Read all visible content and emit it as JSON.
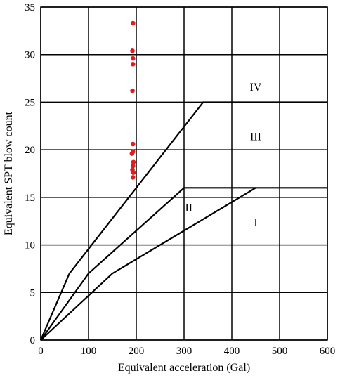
{
  "chart_data": {
    "type": "scatter",
    "xlabel": "Equivalent acceleration (Gal)",
    "ylabel": "Equivalent SPT blow count",
    "xlim": [
      0,
      600
    ],
    "ylim": [
      0,
      35
    ],
    "xticks": [
      0,
      100,
      200,
      300,
      400,
      500,
      600
    ],
    "yticks": [
      0,
      5,
      10,
      15,
      20,
      25,
      30,
      35
    ],
    "grid": true,
    "series": [
      {
        "kind": "points",
        "color": "#e31b1b",
        "points": [
          {
            "x": 193,
            "y": 33.3
          },
          {
            "x": 192,
            "y": 30.4
          },
          {
            "x": 193,
            "y": 29.6
          },
          {
            "x": 193,
            "y": 29.0
          },
          {
            "x": 192,
            "y": 26.2
          },
          {
            "x": 193,
            "y": 20.6
          },
          {
            "x": 193,
            "y": 19.8
          },
          {
            "x": 191,
            "y": 19.6
          },
          {
            "x": 194,
            "y": 18.7
          },
          {
            "x": 193,
            "y": 18.3
          },
          {
            "x": 192,
            "y": 17.9
          },
          {
            "x": 194,
            "y": 17.6
          },
          {
            "x": 193,
            "y": 17.1
          }
        ]
      }
    ],
    "boundary_lines": [
      {
        "color": "#000000",
        "points": [
          {
            "x": 0,
            "y": 0
          },
          {
            "x": 60,
            "y": 7
          },
          {
            "x": 340,
            "y": 25
          },
          {
            "x": 600,
            "y": 25
          }
        ]
      },
      {
        "color": "#000000",
        "points": [
          {
            "x": 0,
            "y": 0
          },
          {
            "x": 100,
            "y": 7
          },
          {
            "x": 300,
            "y": 16
          },
          {
            "x": 600,
            "y": 16
          }
        ]
      },
      {
        "color": "#000000",
        "points": [
          {
            "x": 0,
            "y": 0
          },
          {
            "x": 150,
            "y": 7
          },
          {
            "x": 450,
            "y": 16
          }
        ]
      }
    ],
    "zone_labels": [
      {
        "text": "IV",
        "x": 450,
        "y": 26.2
      },
      {
        "text": "III",
        "x": 450,
        "y": 21.0
      },
      {
        "text": "II",
        "x": 310,
        "y": 13.5
      },
      {
        "text": "I",
        "x": 450,
        "y": 12.0
      }
    ]
  }
}
